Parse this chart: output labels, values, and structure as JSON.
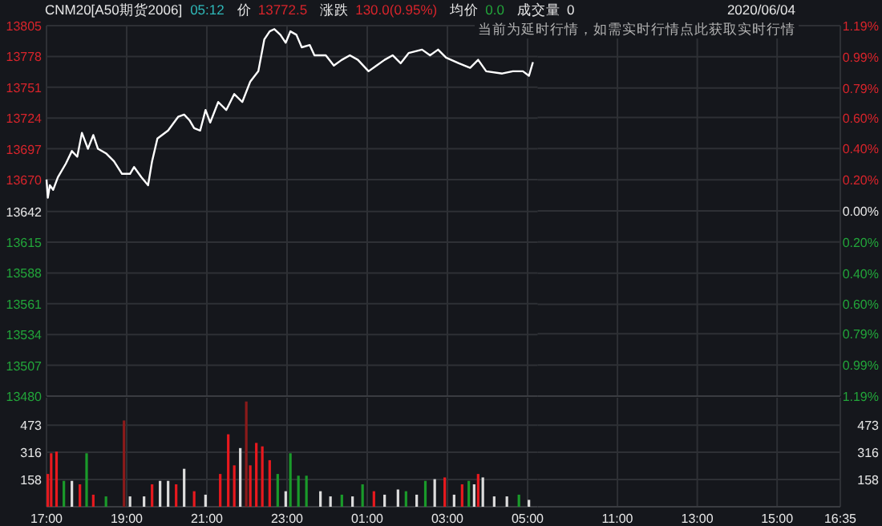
{
  "chart_data": [
    {
      "type": "line",
      "title": "CNM20[A50期货2006]",
      "annotations": [
        "05:12",
        "价",
        "13772.5",
        "涨跌",
        "130.0(0.95%)",
        "均价",
        "0.0",
        "成交量",
        "0",
        "2020/06/04",
        "当前为延时行情，如需实时行情点此获取实时行情"
      ],
      "x": [
        "2020-06-03T17:00",
        "2020-06-03T17:02",
        "2020-06-03T17:05",
        "2020-06-03T17:10",
        "2020-06-03T17:17",
        "2020-06-03T17:29",
        "2020-06-03T17:38",
        "2020-06-03T17:46",
        "2020-06-03T17:53",
        "2020-06-03T18:02",
        "2020-06-03T18:10",
        "2020-06-03T18:17",
        "2020-06-03T18:29",
        "2020-06-03T18:41",
        "2020-06-03T18:53",
        "2020-06-03T19:05",
        "2020-06-03T19:11",
        "2020-06-03T19:22",
        "2020-06-03T19:32",
        "2020-06-03T19:38",
        "2020-06-03T19:46",
        "2020-06-03T20:02",
        "2020-06-03T20:17",
        "2020-06-03T20:26",
        "2020-06-03T20:34",
        "2020-06-03T20:41",
        "2020-06-03T20:50",
        "2020-06-03T20:58",
        "2020-06-03T21:05",
        "2020-06-03T21:17",
        "2020-06-03T21:29",
        "2020-06-03T21:41",
        "2020-06-03T21:53",
        "2020-06-03T22:05",
        "2020-06-03T22:17",
        "2020-06-03T22:26",
        "2020-06-03T22:34",
        "2020-06-03T22:41",
        "2020-06-03T22:50",
        "2020-06-03T22:58",
        "2020-06-03T23:05",
        "2020-06-03T23:14",
        "2020-06-03T23:22",
        "2020-06-03T23:34",
        "2020-06-03T23:41",
        "2020-06-03T23:58",
        "2020-06-04T00:10",
        "2020-06-04T00:22",
        "2020-06-04T00:34",
        "2020-06-04T00:46",
        "2020-06-04T01:02",
        "2020-06-04T01:14",
        "2020-06-04T01:26",
        "2020-06-04T01:38",
        "2020-06-04T01:50",
        "2020-06-04T02:02",
        "2020-06-04T02:22",
        "2020-06-04T02:34",
        "2020-06-04T02:46",
        "2020-06-04T02:58",
        "2020-06-04T03:17",
        "2020-06-04T03:34",
        "2020-06-04T03:46",
        "2020-06-04T03:58",
        "2020-06-04T04:22",
        "2020-06-04T04:38",
        "2020-06-04T04:53",
        "2020-06-04T05:02",
        "2020-06-04T05:08"
      ],
      "series": [
        {
          "color": "#ffffff",
          "values": [
            13670,
            13654,
            13665,
            13661,
            13672,
            13684,
            13695,
            13690,
            13711,
            13697,
            13709,
            13697,
            13693,
            13686,
            13675,
            13675,
            13681,
            13672,
            13665,
            13686,
            13706,
            13713,
            13725,
            13727,
            13722,
            13715,
            13713,
            13731,
            13720,
            13738,
            13731,
            13745,
            13738,
            13756,
            13765,
            13793,
            13800,
            13802,
            13797,
            13790,
            13800,
            13797,
            13786,
            13788,
            13779,
            13779,
            13770,
            13775,
            13779,
            13775,
            13765,
            13770,
            13775,
            13779,
            13772,
            13781,
            13784,
            13779,
            13784,
            13777,
            13772,
            13768,
            13775,
            13765,
            13763,
            13765,
            13765,
            13761,
            13773
          ]
        }
      ],
      "xlim": [
        "2020-06-03T17:00",
        "2020-06-04T05:15"
      ],
      "xticks": [
        {
          "value": "2020-06-03T17:00",
          "label": null
        },
        {
          "value": "2020-06-03T19:00",
          "label": null
        },
        {
          "value": "2020-06-03T21:00",
          "label": null
        },
        {
          "value": "2020-06-03T23:00",
          "label": null
        },
        {
          "value": "2020-06-04T01:00",
          "label": null
        },
        {
          "value": "2020-06-04T03:00",
          "label": null
        },
        {
          "value": "2020-06-04T05:00",
          "label": null
        }
      ],
      "ylim": [
        13480,
        13805
      ],
      "yticks": [
        13480,
        13507,
        13534,
        13561,
        13588,
        13615,
        13642,
        13670,
        13697,
        13724,
        13751,
        13778,
        13805
      ],
      "grid": true,
      "tick_labels": "y"
    },
    {
      "type": "bar",
      "x": [
        "2020-06-03T17:02",
        "2020-06-03T17:07",
        "2020-06-03T17:15",
        "2020-06-03T17:26",
        "2020-06-03T17:38",
        "2020-06-03T17:50",
        "2020-06-03T18:00",
        "2020-06-03T18:10",
        "2020-06-03T18:29",
        "2020-06-03T18:56",
        "2020-06-03T19:05",
        "2020-06-03T19:26",
        "2020-06-03T19:38",
        "2020-06-03T19:50",
        "2020-06-03T20:02",
        "2020-06-03T20:14",
        "2020-06-03T20:26",
        "2020-06-03T20:41",
        "2020-06-03T20:58",
        "2020-06-03T21:20",
        "2020-06-03T21:32",
        "2020-06-03T21:41",
        "2020-06-03T21:50",
        "2020-06-03T21:59",
        "2020-06-03T22:05",
        "2020-06-03T22:14",
        "2020-06-03T22:23",
        "2020-06-03T22:34",
        "2020-06-03T22:46",
        "2020-06-03T22:58",
        "2020-06-03T23:05",
        "2020-06-03T23:17",
        "2020-06-03T23:29",
        "2020-06-03T23:50",
        "2020-06-04T00:05",
        "2020-06-04T00:22",
        "2020-06-04T00:38",
        "2020-06-04T00:53",
        "2020-06-04T01:10",
        "2020-06-04T01:26",
        "2020-06-04T01:46",
        "2020-06-04T01:58",
        "2020-06-04T02:14",
        "2020-06-04T02:27",
        "2020-06-04T02:41",
        "2020-06-04T02:56",
        "2020-06-04T03:10",
        "2020-06-04T03:22",
        "2020-06-04T03:32",
        "2020-06-04T03:40",
        "2020-06-04T03:46",
        "2020-06-04T03:53",
        "2020-06-04T04:10",
        "2020-06-04T04:29",
        "2020-06-04T04:47",
        "2020-06-04T05:02"
      ],
      "values": [
        190,
        310,
        320,
        150,
        150,
        130,
        310,
        70,
        60,
        500,
        60,
        60,
        130,
        150,
        150,
        130,
        220,
        90,
        70,
        190,
        420,
        240,
        340,
        610,
        240,
        370,
        350,
        270,
        190,
        90,
        310,
        180,
        180,
        90,
        60,
        70,
        60,
        130,
        90,
        70,
        100,
        90,
        70,
        150,
        160,
        170,
        70,
        130,
        150,
        130,
        190,
        170,
        60,
        60,
        70,
        40
      ],
      "colors": [
        "#e8191e",
        "#e8191e",
        "#e8191e",
        "#1a9a2a",
        "#dddddd",
        "#e8191e",
        "#1a9a2a",
        "#e8191e",
        "#1a9a2a",
        "#8b1a1a",
        "#dddddd",
        "#dddddd",
        "#e8191e",
        "#dddddd",
        "#dddddd",
        "#e8191e",
        "#dddddd",
        "#e8191e",
        "#dddddd",
        "#e8191e",
        "#e8191e",
        "#e8191e",
        "#dddddd",
        "#8b1a1a",
        "#e8191e",
        "#e8191e",
        "#e8191e",
        "#e8191e",
        "#1a9a2a",
        "#dddddd",
        "#1a9a2a",
        "#1a9a2a",
        "#1a9a2a",
        "#dddddd",
        "#dddddd",
        "#1a9a2a",
        "#dddddd",
        "#1a9a2a",
        "#e8191e",
        "#dddddd",
        "#dddddd",
        "#1a9a2a",
        "#dddddd",
        "#1a9a2a",
        "#dddddd",
        "#e8191e",
        "#dddddd",
        "#e8191e",
        "#1a9a2a",
        "#dddddd",
        "#e8191e",
        "#dddddd",
        "#dddddd",
        "#dddddd",
        "#1a9a2a",
        "#dddddd"
      ],
      "xlim": [
        "2020-06-03T17:00",
        "2020-06-04T05:15"
      ],
      "xticks": [
        {
          "value": "2020-06-03T17:00",
          "label": "17:00"
        },
        {
          "value": "2020-06-03T19:00",
          "label": "19:00"
        },
        {
          "value": "2020-06-03T21:00",
          "label": "21:00"
        },
        {
          "value": "2020-06-03T23:00",
          "label": "23:00"
        },
        {
          "value": "2020-06-04T01:00",
          "label": "01:00"
        },
        {
          "value": "2020-06-04T03:00",
          "label": "03:00"
        },
        {
          "value": "2020-06-04T05:00",
          "label": "05:00"
        }
      ],
      "ylim": [
        0,
        632
      ],
      "yticks": [
        158,
        316,
        473
      ],
      "grid": true
    },
    {
      "type": "line",
      "xlim": [
        "2020-06-04T09:00",
        "2020-06-04T16:35"
      ],
      "xticks": [
        {
          "value": "2020-06-04T11:00",
          "label": null
        },
        {
          "value": "2020-06-04T13:00",
          "label": null
        },
        {
          "value": "2020-06-04T15:00",
          "label": null
        },
        {
          "value": "2020-06-04T16:35",
          "label": null
        }
      ],
      "ylim": [
        -1.19,
        1.19
      ],
      "yticks": [
        {
          "value": -1.19,
          "label": "1.19%"
        },
        {
          "value": -0.99,
          "label": "0.99%"
        },
        {
          "value": -0.79,
          "label": "0.79%"
        },
        {
          "value": -0.6,
          "label": "0.60%"
        },
        {
          "value": -0.4,
          "label": "0.40%"
        },
        {
          "value": -0.2,
          "label": "0.20%"
        },
        {
          "value": 0,
          "label": "0.00%"
        },
        {
          "value": 0.2,
          "label": "0.20%"
        },
        {
          "value": 0.4,
          "label": "0.40%"
        },
        {
          "value": 0.6,
          "label": "0.60%"
        },
        {
          "value": 0.79,
          "label": "0.79%"
        },
        {
          "value": 0.99,
          "label": "0.99%"
        },
        {
          "value": 1.19,
          "label": "1.19%"
        }
      ],
      "grid": true,
      "tick_labels": "y"
    },
    {
      "type": "bar",
      "xlim": [
        "2020-06-04T09:00",
        "2020-06-04T16:35"
      ],
      "xticks": [
        {
          "value": "2020-06-04T11:00",
          "label": "11:00"
        },
        {
          "value": "2020-06-04T13:00",
          "label": "13:00"
        },
        {
          "value": "2020-06-04T15:00",
          "label": "15:00"
        },
        {
          "value": "2020-06-04T16:35",
          "label": "16:35"
        }
      ],
      "ylim": [
        0,
        632
      ],
      "yticks": [
        158,
        316,
        473
      ],
      "grid": true
    }
  ]
}
